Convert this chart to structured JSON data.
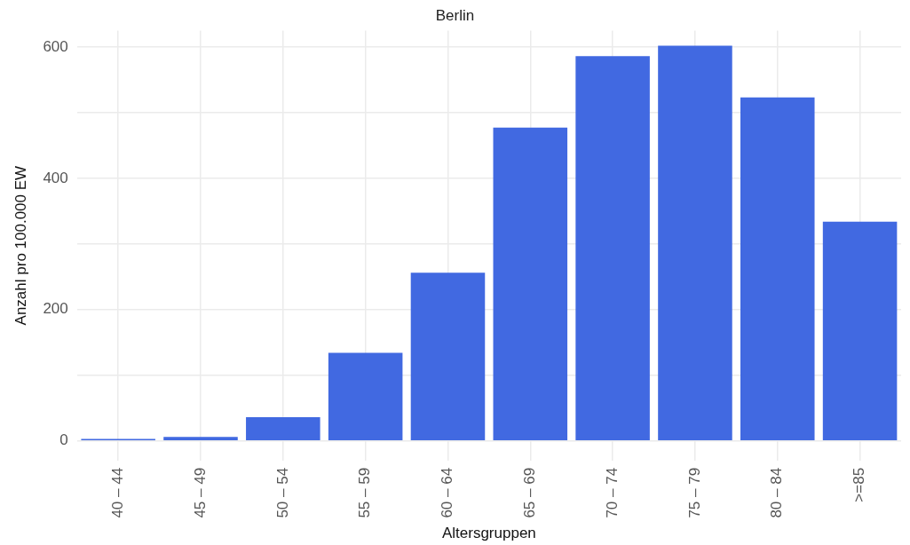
{
  "chart_data": {
    "type": "bar",
    "title": "Berlin",
    "xlabel": "Altersgruppen",
    "ylabel": "Anzahl pro 100.000 EW",
    "categories": [
      "40 – 44",
      "45 – 49",
      "50 – 54",
      "55 – 59",
      "60 – 64",
      "65 – 69",
      "70 – 74",
      "75 – 79",
      "80 – 84",
      ">=85"
    ],
    "values": [
      3,
      6,
      36,
      134,
      256,
      477,
      586,
      602,
      523,
      334
    ],
    "color": "#4169e1",
    "ylim": [
      -30,
      625
    ],
    "yticks": [
      0,
      {
        "value": 100,
        "label": null
      },
      200,
      {
        "value": 300,
        "label": null
      },
      400,
      {
        "value": 500,
        "label": null
      },
      600
    ],
    "grid": true
  }
}
